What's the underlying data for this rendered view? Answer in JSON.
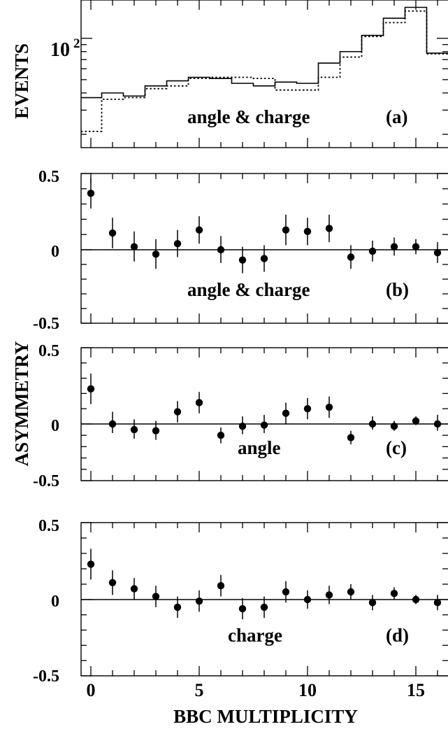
{
  "figure": {
    "xlabel": "BBC MULTIPLICITY",
    "ylabel_top": "EVENTS",
    "ylabel_asym": "ASYMMETRY",
    "xticks": [
      "0",
      "5",
      "10",
      "15"
    ]
  },
  "chart_data": [
    {
      "type": "histogram",
      "panel": "(a)",
      "annotation": "angle & charge",
      "ylabel": "EVENTS",
      "yscale": "log",
      "ytick_label": "10",
      "ytick_exponent": "2",
      "ytick_value": 100,
      "ylim": [
        16,
        190
      ],
      "xlim": [
        -0.5,
        16.5
      ],
      "bin_edges": [
        -0.5,
        0.5,
        1.5,
        2.5,
        3.5,
        4.5,
        5.5,
        6.5,
        7.5,
        8.5,
        9.5,
        10.5,
        11.5,
        12.5,
        13.5,
        14.5,
        15.5,
        16.5
      ],
      "series": [
        {
          "style": "solid",
          "values": [
            37,
            40,
            38,
            45,
            49,
            52,
            51,
            47,
            45,
            48,
            47,
            66,
            80,
            105,
            140,
            168,
            78
          ]
        },
        {
          "style": "dotted",
          "values": [
            21,
            36,
            37,
            43,
            45,
            51,
            52,
            52,
            51,
            42,
            42,
            52,
            73,
            103,
            130,
            158,
            77
          ]
        }
      ]
    },
    {
      "type": "scatter",
      "panel": "(b)",
      "annotation": "angle & charge",
      "ylabel": "ASYMMETRY",
      "yticks": [
        "0.5",
        "0",
        "-0.5"
      ],
      "ylim": [
        -0.5,
        0.5
      ],
      "xlim": [
        -0.5,
        16.5
      ],
      "x": [
        0,
        1,
        2,
        3,
        4,
        5,
        6,
        7,
        8,
        9,
        10,
        11,
        12,
        13,
        14,
        15,
        16
      ],
      "y": [
        0.37,
        0.11,
        0.02,
        -0.03,
        0.04,
        0.13,
        0.0,
        -0.07,
        -0.06,
        0.13,
        0.12,
        0.14,
        -0.05,
        -0.01,
        0.02,
        0.02,
        -0.02
      ],
      "yerr": [
        0.1,
        0.1,
        0.1,
        0.1,
        0.09,
        0.09,
        0.09,
        0.09,
        0.09,
        0.1,
        0.09,
        0.09,
        0.08,
        0.07,
        0.06,
        0.05,
        0.07
      ]
    },
    {
      "type": "scatter",
      "panel": "(c)",
      "annotation": "angle",
      "ylabel": "ASYMMETRY",
      "yticks": [
        "0.5",
        "0",
        "-0.5"
      ],
      "ylim": [
        -0.5,
        0.5
      ],
      "xlim": [
        -0.5,
        16.5
      ],
      "x": [
        0,
        1,
        2,
        3,
        4,
        5,
        6,
        7,
        8,
        9,
        10,
        11,
        12,
        13,
        14,
        15,
        16
      ],
      "y": [
        0.23,
        0.0,
        -0.05,
        -0.06,
        0.08,
        0.14,
        -0.1,
        -0.02,
        -0.01,
        0.07,
        0.1,
        0.11,
        -0.12,
        0.0,
        -0.02,
        0.02,
        0.0
      ],
      "yerr": [
        0.1,
        0.08,
        0.08,
        0.08,
        0.07,
        0.07,
        0.07,
        0.07,
        0.07,
        0.07,
        0.07,
        0.07,
        0.06,
        0.05,
        0.04,
        0.03,
        0.06
      ]
    },
    {
      "type": "scatter",
      "panel": "(d)",
      "annotation": "charge",
      "ylabel": "ASYMMETRY",
      "yticks": [
        "0.5",
        "0",
        "-0.5"
      ],
      "ylim": [
        -0.5,
        0.5
      ],
      "xlim": [
        -0.5,
        16.5
      ],
      "x": [
        0,
        1,
        2,
        3,
        4,
        5,
        6,
        7,
        8,
        9,
        10,
        11,
        12,
        13,
        14,
        15,
        16
      ],
      "y": [
        0.23,
        0.11,
        0.07,
        0.02,
        -0.05,
        -0.01,
        0.09,
        -0.06,
        -0.05,
        0.05,
        0.0,
        0.03,
        0.05,
        -0.02,
        0.04,
        0.0,
        -0.02
      ],
      "yerr": [
        0.1,
        0.08,
        0.07,
        0.07,
        0.07,
        0.07,
        0.07,
        0.07,
        0.07,
        0.07,
        0.06,
        0.06,
        0.05,
        0.05,
        0.04,
        0.03,
        0.05
      ]
    }
  ]
}
